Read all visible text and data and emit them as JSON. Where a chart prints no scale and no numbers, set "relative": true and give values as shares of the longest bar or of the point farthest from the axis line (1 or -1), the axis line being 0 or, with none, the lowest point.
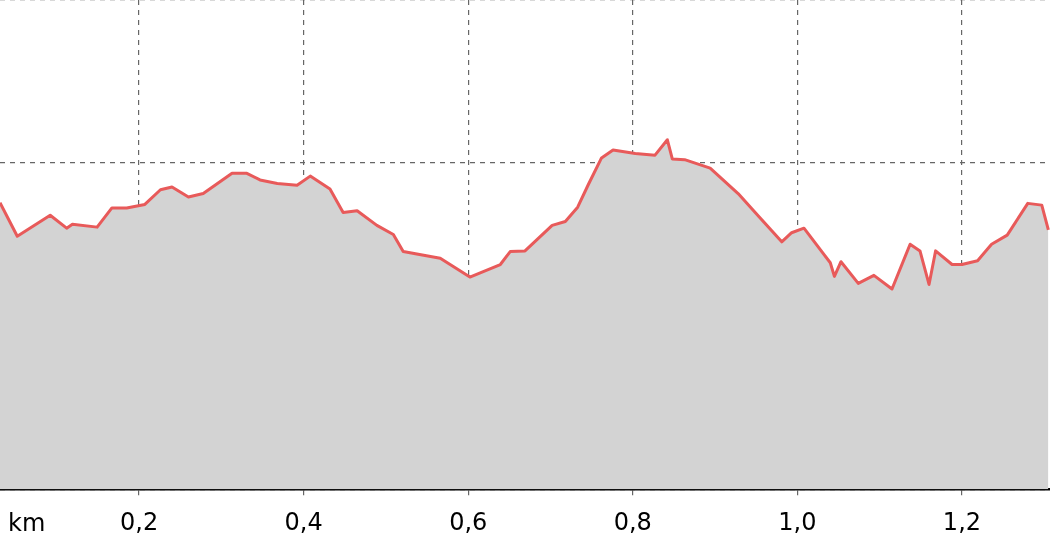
{
  "chart_data": {
    "type": "area",
    "relative": true,
    "xlabel": "km",
    "grid": true,
    "xlim": [
      0.031,
      1.307
    ],
    "xticks": [
      {
        "value": 0.2,
        "label": "0,2"
      },
      {
        "value": 0.4,
        "label": "0,4"
      },
      {
        "value": 0.6,
        "label": "0,6"
      },
      {
        "value": 0.8,
        "label": "0,8"
      },
      {
        "value": 1.0,
        "label": "1,0"
      },
      {
        "value": 1.2,
        "label": "1,2"
      }
    ],
    "tick_labels": "x",
    "line_style": "solid",
    "marker": "none",
    "series": [
      {
        "color": "#e85a5a",
        "x": [
          0.031,
          0.052,
          0.092,
          0.112,
          0.119,
          0.149,
          0.167,
          0.185,
          0.207,
          0.226,
          0.24,
          0.26,
          0.278,
          0.313,
          0.331,
          0.347,
          0.368,
          0.392,
          0.408,
          0.432,
          0.448,
          0.465,
          0.489,
          0.509,
          0.521,
          0.566,
          0.602,
          0.639,
          0.651,
          0.669,
          0.702,
          0.718,
          0.733,
          0.746,
          0.762,
          0.776,
          0.803,
          0.827,
          0.842,
          0.848,
          0.863,
          0.894,
          0.928,
          0.981,
          0.993,
          1.008,
          1.04,
          1.045,
          1.053,
          1.074,
          1.093,
          1.115,
          1.137,
          1.149,
          1.16,
          1.168,
          1.188,
          1.2,
          1.219,
          1.236,
          1.255,
          1.28,
          1.297,
          1.305
        ],
        "values": [
          0.82,
          0.724,
          0.784,
          0.747,
          0.758,
          0.75,
          0.805,
          0.805,
          0.815,
          0.857,
          0.865,
          0.836,
          0.846,
          0.904,
          0.904,
          0.885,
          0.875,
          0.87,
          0.896,
          0.859,
          0.792,
          0.797,
          0.755,
          0.729,
          0.68,
          0.661,
          0.607,
          0.643,
          0.68,
          0.682,
          0.755,
          0.766,
          0.807,
          0.872,
          0.948,
          0.971,
          0.961,
          0.956,
          1,
          0.945,
          0.943,
          0.919,
          0.846,
          0.708,
          0.734,
          0.747,
          0.648,
          0.609,
          0.651,
          0.589,
          0.612,
          0.573,
          0.701,
          0.682,
          0.586,
          0.682,
          0.643,
          0.643,
          0.654,
          0.701,
          0.727,
          0.818,
          0.813,
          0.742
        ]
      }
    ]
  }
}
